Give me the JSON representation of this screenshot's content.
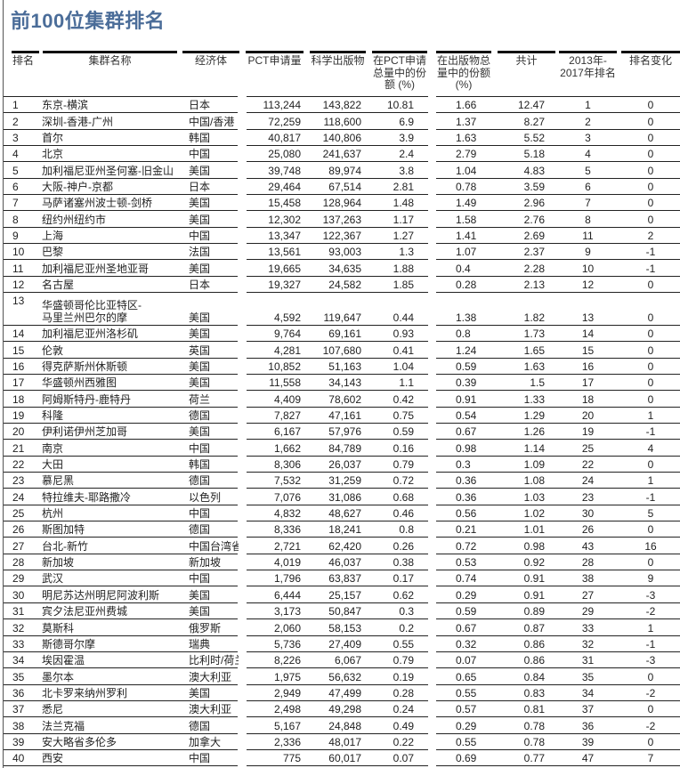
{
  "title": "前100位集群排名",
  "headers": [
    "排名",
    "集群名称",
    "经济体",
    "PCT申请量",
    "科学出版物",
    "在PCT申请\n总量中的份\n额 (%)",
    "在出版物总\n量中的份额\n(%)",
    "共计",
    "2013年-\n2017年排名",
    "排名变化"
  ],
  "rows": [
    [
      "1",
      "东京-横滨",
      "日本",
      "113,244",
      "143,822",
      "10.81",
      "1.66",
      "12.47",
      "1",
      "0"
    ],
    [
      "2",
      "深圳-香港-广州",
      "中国/香港",
      "72,259",
      "118,600",
      "6.9",
      "1.37",
      "8.27",
      "2",
      "0"
    ],
    [
      "3",
      "首尔",
      "韩国",
      "40,817",
      "140,806",
      "3.9",
      "1.63",
      "5.52",
      "3",
      "0"
    ],
    [
      "4",
      "北京",
      "中国",
      "25,080",
      "241,637",
      "2.4",
      "2.79",
      "5.18",
      "4",
      "0"
    ],
    [
      "5",
      "加利福尼亚州圣何塞-旧金山",
      "美国",
      "39,748",
      "89,974",
      "3.8",
      "1.04",
      "4.83",
      "5",
      "0"
    ],
    [
      "6",
      "大阪-神户-京都",
      "日本",
      "29,464",
      "67,514",
      "2.81",
      "0.78",
      "3.59",
      "6",
      "0"
    ],
    [
      "7",
      "马萨诸塞州波士顿-剑桥",
      "美国",
      "15,458",
      "128,964",
      "1.48",
      "1.49",
      "2.96",
      "7",
      "0"
    ],
    [
      "8",
      "纽约州纽约市",
      "美国",
      "12,302",
      "137,263",
      "1.17",
      "1.58",
      "2.76",
      "8",
      "0"
    ],
    [
      "9",
      "上海",
      "中国",
      "13,347",
      "122,367",
      "1.27",
      "1.41",
      "2.69",
      "11",
      "2"
    ],
    [
      "10",
      "巴黎",
      "法国",
      "13,561",
      "93,003",
      "1.3",
      "1.07",
      "2.37",
      "9",
      "-1"
    ],
    [
      "11",
      "加利福尼亚州圣地亚哥",
      "美国",
      "19,665",
      "34,635",
      "1.88",
      "0.4",
      "2.28",
      "10",
      "-1"
    ],
    [
      "12",
      "名古屋",
      "日本",
      "19,327",
      "24,582",
      "1.85",
      "0.28",
      "2.13",
      "12",
      "0"
    ],
    [
      "13",
      "华盛顿哥伦比亚特区-\n马里兰州巴尔的摩",
      "美国",
      "4,592",
      "119,647",
      "0.44",
      "1.38",
      "1.82",
      "13",
      "0"
    ],
    [
      "14",
      "加利福尼亚州洛杉矶",
      "美国",
      "9,764",
      "69,161",
      "0.93",
      "0.8",
      "1.73",
      "14",
      "0"
    ],
    [
      "15",
      "伦敦",
      "英国",
      "4,281",
      "107,680",
      "0.41",
      "1.24",
      "1.65",
      "15",
      "0"
    ],
    [
      "16",
      "得克萨斯州休斯顿",
      "美国",
      "10,852",
      "51,163",
      "1.04",
      "0.59",
      "1.63",
      "16",
      "0"
    ],
    [
      "17",
      "华盛顿州西雅图",
      "美国",
      "11,558",
      "34,143",
      "1.1",
      "0.39",
      "1.5",
      "17",
      "0"
    ],
    [
      "18",
      "阿姆斯特丹-鹿特丹",
      "荷兰",
      "4,409",
      "78,602",
      "0.42",
      "0.91",
      "1.33",
      "18",
      "0"
    ],
    [
      "19",
      "科隆",
      "德国",
      "7,827",
      "47,161",
      "0.75",
      "0.54",
      "1.29",
      "20",
      "1"
    ],
    [
      "20",
      "伊利诺伊州芝加哥",
      "美国",
      "6,167",
      "57,976",
      "0.59",
      "0.67",
      "1.26",
      "19",
      "-1"
    ],
    [
      "21",
      "南京",
      "中国",
      "1,662",
      "84,789",
      "0.16",
      "0.98",
      "1.14",
      "25",
      "4"
    ],
    [
      "22",
      "大田",
      "韩国",
      "8,306",
      "26,037",
      "0.79",
      "0.3",
      "1.09",
      "22",
      "0"
    ],
    [
      "23",
      "慕尼黑",
      "德国",
      "7,532",
      "31,259",
      "0.72",
      "0.36",
      "1.08",
      "24",
      "1"
    ],
    [
      "24",
      "特拉维夫-耶路撒冷",
      "以色列",
      "7,076",
      "31,086",
      "0.68",
      "0.36",
      "1.03",
      "23",
      "-1"
    ],
    [
      "25",
      "杭州",
      "中国",
      "4,832",
      "48,627",
      "0.46",
      "0.56",
      "1.02",
      "30",
      "5"
    ],
    [
      "26",
      "斯图加特",
      "德国",
      "8,336",
      "18,241",
      "0.8",
      "0.21",
      "1.01",
      "26",
      "0"
    ],
    [
      "27",
      "台北-新竹",
      "中国台湾省",
      "2,721",
      "62,420",
      "0.26",
      "0.72",
      "0.98",
      "43",
      "16"
    ],
    [
      "28",
      "新加坡",
      "新加坡",
      "4,019",
      "46,037",
      "0.38",
      "0.53",
      "0.92",
      "28",
      "0"
    ],
    [
      "29",
      "武汉",
      "中国",
      "1,796",
      "63,837",
      "0.17",
      "0.74",
      "0.91",
      "38",
      "9"
    ],
    [
      "30",
      "明尼苏达州明尼阿波利斯",
      "美国",
      "6,444",
      "25,157",
      "0.62",
      "0.29",
      "0.91",
      "27",
      "-3"
    ],
    [
      "31",
      "宾夕法尼亚州费城",
      "美国",
      "3,173",
      "50,847",
      "0.3",
      "0.59",
      "0.89",
      "29",
      "-2"
    ],
    [
      "32",
      "莫斯科",
      "俄罗斯",
      "2,060",
      "58,153",
      "0.2",
      "0.67",
      "0.87",
      "33",
      "1"
    ],
    [
      "33",
      "斯德哥尔摩",
      "瑞典",
      "5,736",
      "27,409",
      "0.55",
      "0.32",
      "0.86",
      "32",
      "-1"
    ],
    [
      "34",
      "埃因霍温",
      "比利时/荷兰",
      "8,226",
      "6,067",
      "0.79",
      "0.07",
      "0.86",
      "31",
      "-3"
    ],
    [
      "35",
      "墨尔本",
      "澳大利亚",
      "1,975",
      "56,632",
      "0.19",
      "0.65",
      "0.84",
      "35",
      "0"
    ],
    [
      "36",
      "北卡罗来纳州罗利",
      "美国",
      "2,949",
      "47,499",
      "0.28",
      "0.55",
      "0.83",
      "34",
      "-2"
    ],
    [
      "37",
      "悉尼",
      "澳大利亚",
      "2,498",
      "49,298",
      "0.24",
      "0.57",
      "0.81",
      "37",
      "0"
    ],
    [
      "38",
      "法兰克福",
      "德国",
      "5,167",
      "24,848",
      "0.49",
      "0.29",
      "0.78",
      "36",
      "-2"
    ],
    [
      "39",
      "安大略省多伦多",
      "加拿大",
      "2,336",
      "48,017",
      "0.22",
      "0.55",
      "0.78",
      "39",
      "0"
    ],
    [
      "40",
      "西安",
      "中国",
      "775",
      "60,017",
      "0.07",
      "0.69",
      "0.77",
      "47",
      "7"
    ]
  ],
  "colors": {
    "title": "#4b6d99",
    "rule": "#111111"
  }
}
